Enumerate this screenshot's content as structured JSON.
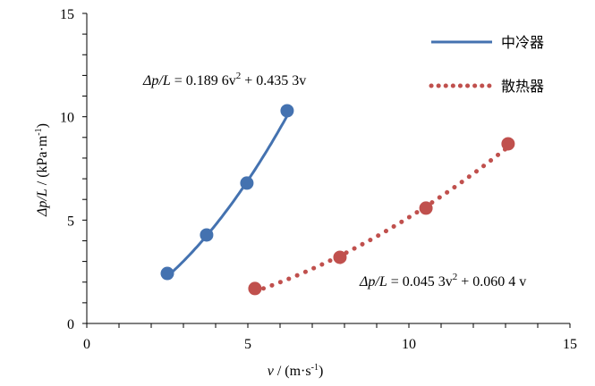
{
  "chart_data": {
    "type": "scatter",
    "title": "",
    "xlabel_var": "v",
    "xlabel_unit": "/ (m·s",
    "xlabel_exp": "-1",
    "xlabel_close": ")",
    "ylabel_var": "Δp/L",
    "ylabel_unit": " / (kPa·m",
    "ylabel_exp": "-1",
    "ylabel_close": ")",
    "xlim": [
      0,
      15
    ],
    "ylim": [
      0,
      15
    ],
    "xticks": [
      "0",
      "5",
      "10",
      "15"
    ],
    "yticks": [
      "0",
      "5",
      "10",
      "15"
    ],
    "legend_position": "top-right",
    "series": [
      {
        "name": "中冷器",
        "color": "#4472b0",
        "line": "solid",
        "x": [
          2.5,
          3.72,
          4.97,
          6.22
        ],
        "y": [
          2.42,
          4.28,
          6.79,
          10.29
        ],
        "fit": {
          "a": 0.1896,
          "b": 0.4353,
          "xrange": [
            2.5,
            6.22
          ]
        },
        "equation": {
          "lhs": "Δp/L",
          "rhs": " = 0.189 6v",
          "sup": "2",
          "tail": " + 0.435 3v"
        }
      },
      {
        "name": "散热器",
        "color": "#c0504d",
        "line": "dotted",
        "x": [
          5.22,
          7.86,
          10.53,
          13.08
        ],
        "y": [
          1.69,
          3.2,
          5.58,
          8.69
        ],
        "fit": {
          "a": 0.0453,
          "b": 0.0604,
          "xrange": [
            5.22,
            13.08
          ]
        },
        "equation": {
          "lhs": "Δp/L",
          "rhs": " = 0.045 3v",
          "sup": "2",
          "tail": " + 0.060 4 v"
        }
      }
    ]
  }
}
